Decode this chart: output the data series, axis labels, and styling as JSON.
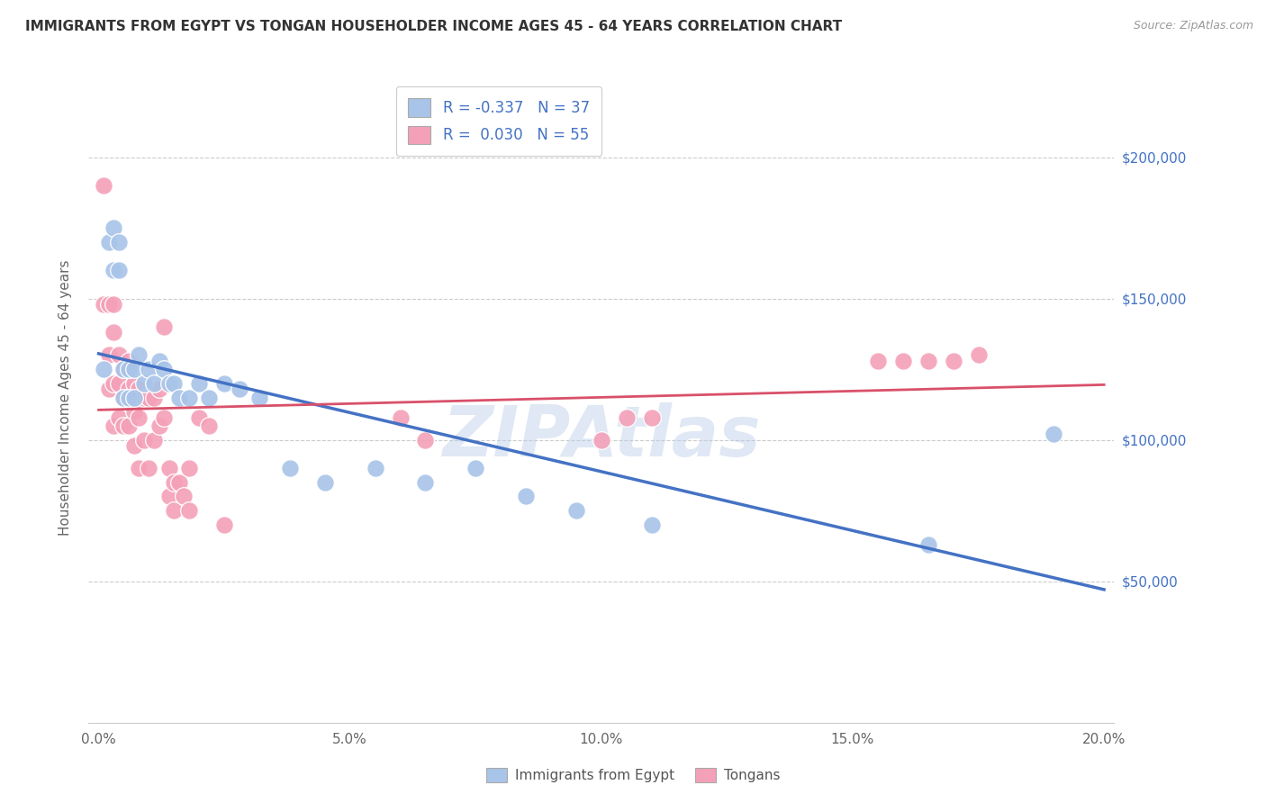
{
  "title": "IMMIGRANTS FROM EGYPT VS TONGAN HOUSEHOLDER INCOME AGES 45 - 64 YEARS CORRELATION CHART",
  "source": "Source: ZipAtlas.com",
  "ylabel": "Householder Income Ages 45 - 64 years",
  "xlim": [
    -0.002,
    0.202
  ],
  "ylim": [
    0,
    230000
  ],
  "xtick_labels": [
    "0.0%",
    "5.0%",
    "10.0%",
    "15.0%",
    "20.0%"
  ],
  "xtick_vals": [
    0.0,
    0.05,
    0.1,
    0.15,
    0.2
  ],
  "ytick_labels": [
    "$50,000",
    "$100,000",
    "$150,000",
    "$200,000"
  ],
  "ytick_vals": [
    50000,
    100000,
    150000,
    200000
  ],
  "legend_labels": [
    "Immigrants from Egypt",
    "Tongans"
  ],
  "legend_R": [
    "R = -0.337",
    "R =  0.030"
  ],
  "legend_N": [
    "N = 37",
    "N = 55"
  ],
  "color_egypt": "#a8c4e8",
  "color_tongan": "#f4a0b8",
  "line_color_egypt": "#4472c4",
  "line_color_tongan": "#d9506a",
  "watermark": "ZIPAtlas",
  "egypt_x": [
    0.001,
    0.002,
    0.003,
    0.003,
    0.004,
    0.004,
    0.005,
    0.005,
    0.006,
    0.006,
    0.007,
    0.007,
    0.008,
    0.009,
    0.01,
    0.011,
    0.012,
    0.013,
    0.014,
    0.015,
    0.016,
    0.018,
    0.02,
    0.022,
    0.025,
    0.028,
    0.032,
    0.038,
    0.045,
    0.055,
    0.065,
    0.075,
    0.085,
    0.095,
    0.11,
    0.165,
    0.19
  ],
  "egypt_y": [
    125000,
    170000,
    175000,
    160000,
    170000,
    160000,
    125000,
    115000,
    125000,
    115000,
    125000,
    115000,
    130000,
    120000,
    125000,
    120000,
    128000,
    125000,
    120000,
    120000,
    115000,
    115000,
    120000,
    115000,
    120000,
    118000,
    115000,
    90000,
    85000,
    90000,
    85000,
    90000,
    80000,
    75000,
    70000,
    63000,
    102000
  ],
  "tongan_x": [
    0.001,
    0.001,
    0.002,
    0.002,
    0.002,
    0.003,
    0.003,
    0.003,
    0.003,
    0.004,
    0.004,
    0.004,
    0.005,
    0.005,
    0.005,
    0.006,
    0.006,
    0.006,
    0.007,
    0.007,
    0.007,
    0.008,
    0.008,
    0.008,
    0.009,
    0.009,
    0.01,
    0.01,
    0.011,
    0.011,
    0.012,
    0.012,
    0.013,
    0.013,
    0.014,
    0.014,
    0.015,
    0.015,
    0.016,
    0.017,
    0.018,
    0.018,
    0.02,
    0.022,
    0.025,
    0.06,
    0.065,
    0.1,
    0.105,
    0.11,
    0.155,
    0.16,
    0.165,
    0.17,
    0.175
  ],
  "tongan_y": [
    190000,
    148000,
    148000,
    130000,
    118000,
    148000,
    138000,
    120000,
    105000,
    130000,
    120000,
    108000,
    125000,
    115000,
    105000,
    128000,
    118000,
    105000,
    120000,
    110000,
    98000,
    118000,
    108000,
    90000,
    115000,
    100000,
    115000,
    90000,
    115000,
    100000,
    118000,
    105000,
    140000,
    108000,
    90000,
    80000,
    85000,
    75000,
    85000,
    80000,
    90000,
    75000,
    108000,
    105000,
    70000,
    108000,
    100000,
    100000,
    108000,
    108000,
    128000,
    128000,
    128000,
    128000,
    130000
  ]
}
